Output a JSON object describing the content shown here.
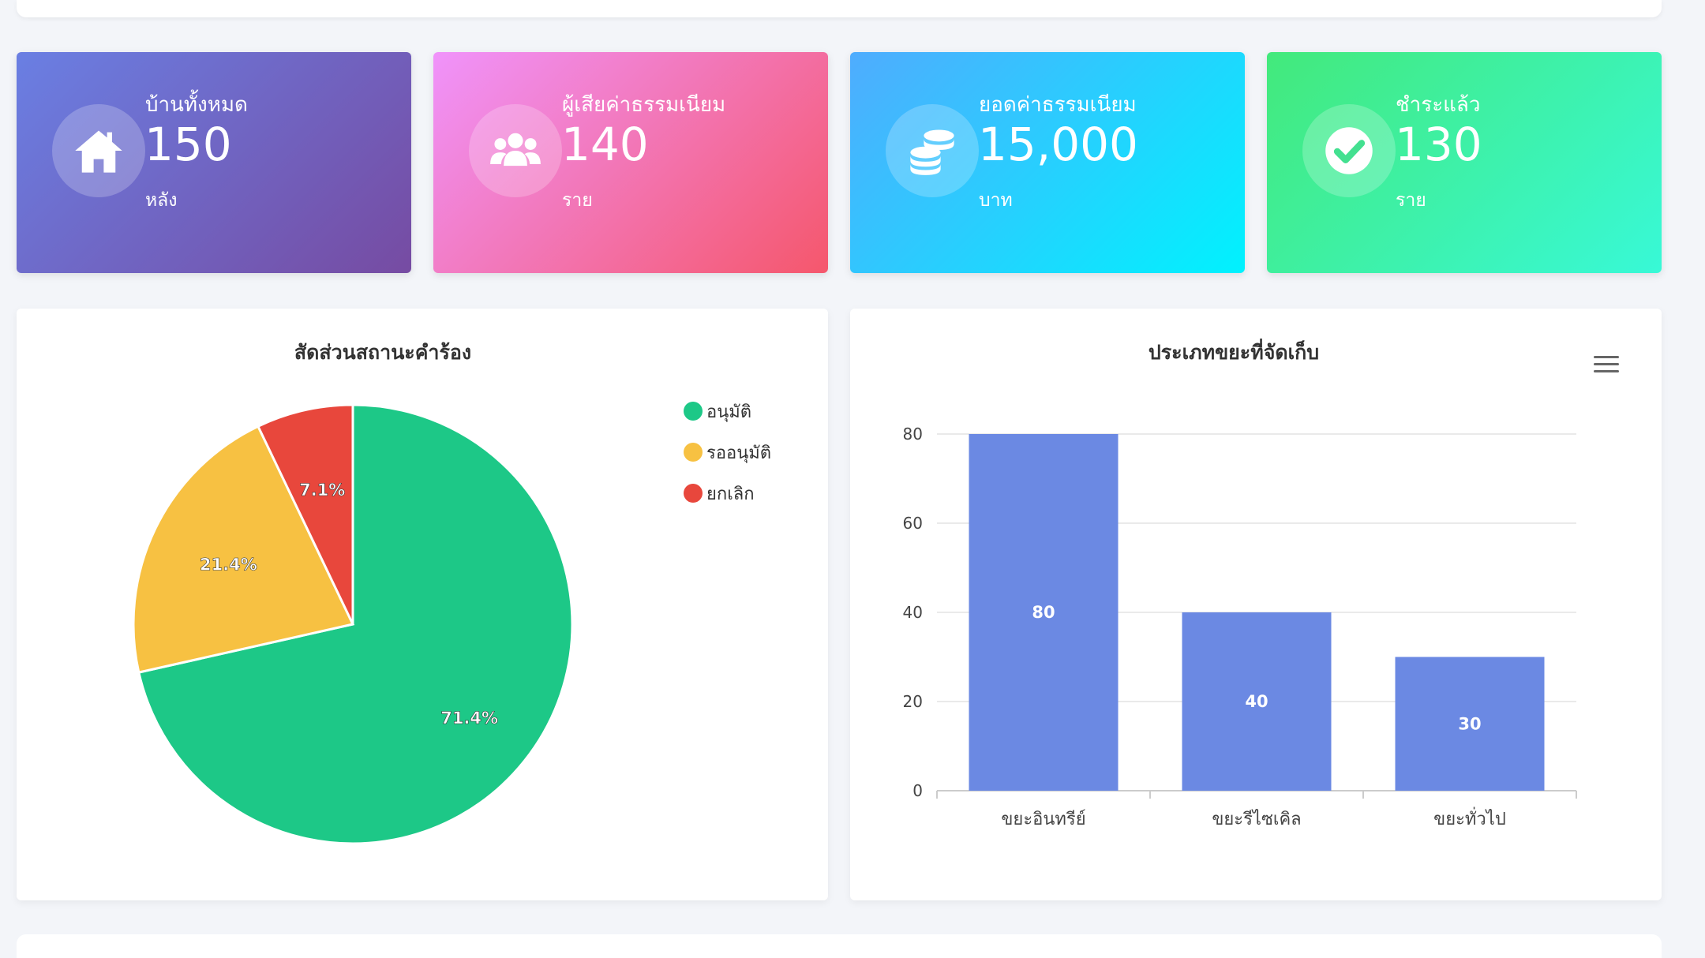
{
  "stat_cards": [
    {
      "label": "บ้านทั้งหมด",
      "value": "150",
      "unit": "หลัง",
      "icon": "home-icon"
    },
    {
      "label": "ผู้เสียค่าธรรมเนียม",
      "value": "140",
      "unit": "ราย",
      "icon": "users-icon"
    },
    {
      "label": "ยอดค่าธรรมเนียม",
      "value": "15,000",
      "unit": "บาท",
      "icon": "coins-icon"
    },
    {
      "label": "ชำระแล้ว",
      "value": "130",
      "unit": "ราย",
      "icon": "check-circle-icon"
    }
  ],
  "chart_data": [
    {
      "type": "pie",
      "title": "สัดส่วนสถานะคำร้อง",
      "categories": [
        "อนุมัติ",
        "รออนุมัติ",
        "ยกเลิก"
      ],
      "values": [
        71.4,
        21.4,
        7.1
      ],
      "data_labels": [
        "71.4%",
        "21.4%",
        "7.1%"
      ],
      "colors": [
        "#1dc887",
        "#f7c142",
        "#e8473c"
      ],
      "legend_placement": "top-right"
    },
    {
      "type": "bar",
      "title": "ประเภทขยะที่จัดเก็บ",
      "categories": [
        "ขยะอินทรีย์",
        "ขยะรีไซเคิล",
        "ขยะทั่วไป"
      ],
      "values": [
        80,
        40,
        30
      ],
      "ylim": [
        0,
        80
      ],
      "yticks": [
        0,
        20,
        40,
        60,
        80
      ],
      "color": "#6b89e3",
      "grid": true
    }
  ]
}
